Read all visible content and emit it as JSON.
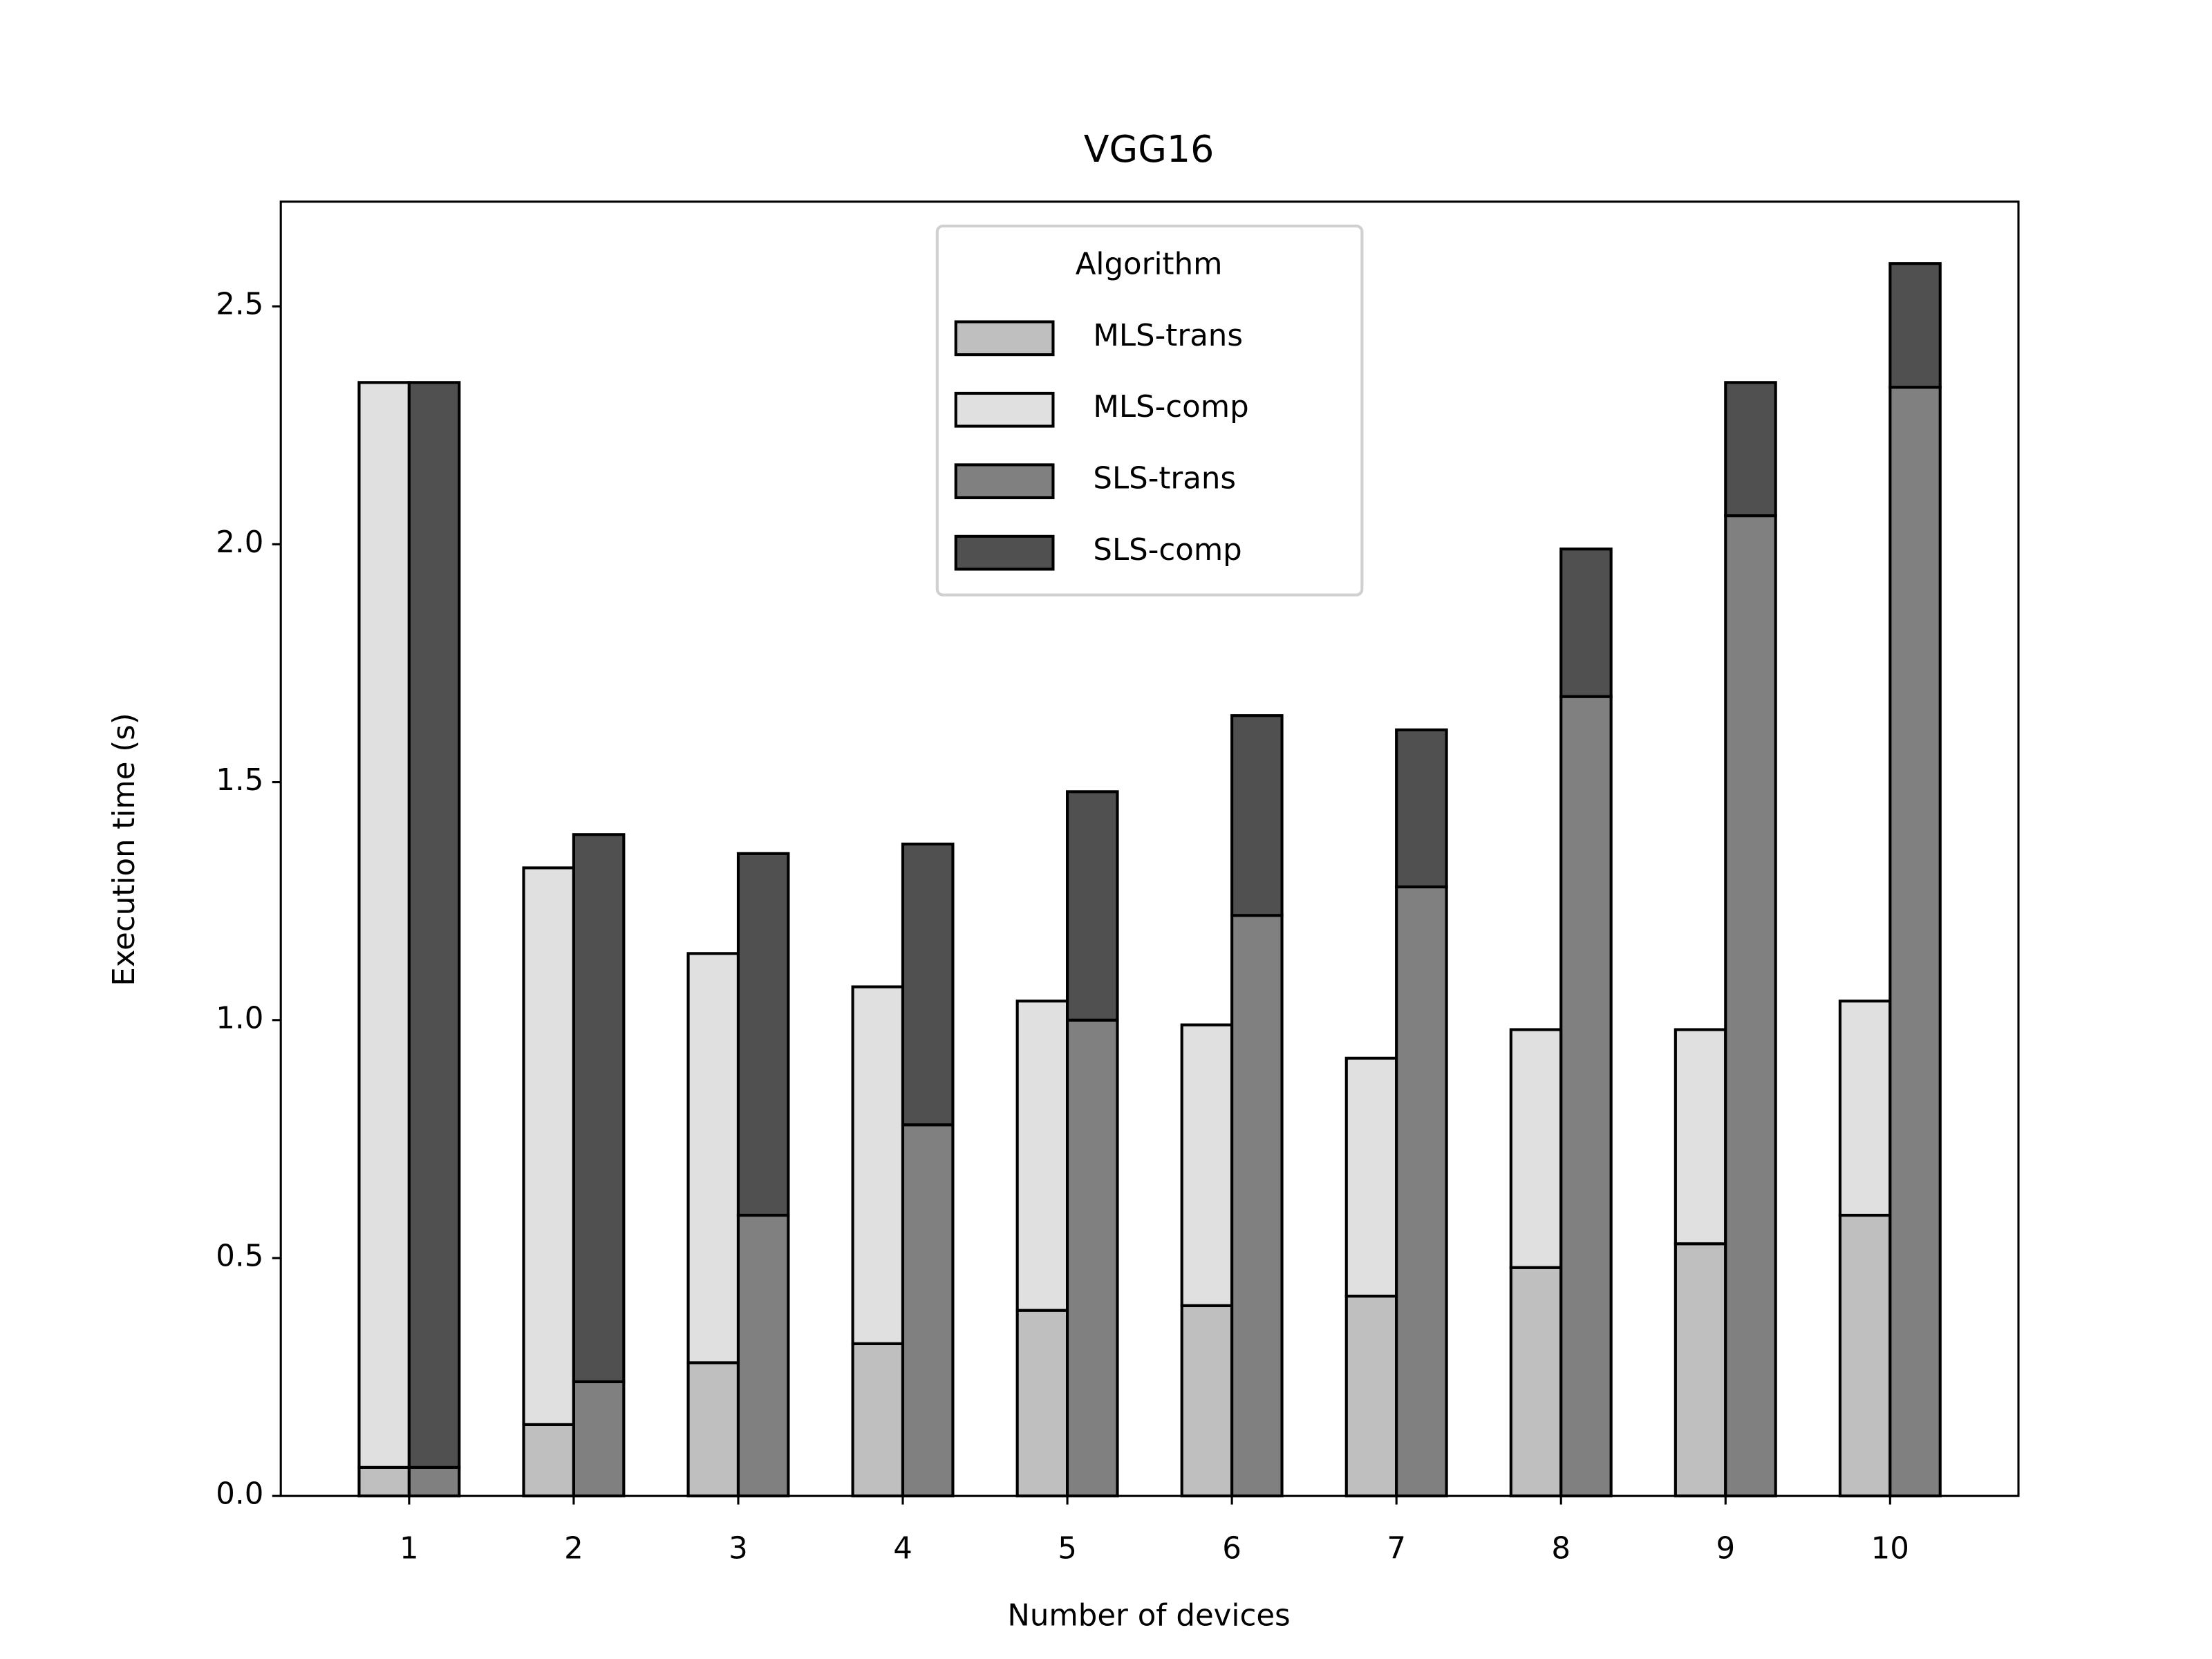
{
  "chart_data": {
    "type": "bar",
    "title": "VGG16",
    "x_label": "Number of devices",
    "y_label": "Execution time (s)",
    "categories": [
      "1",
      "2",
      "3",
      "4",
      "5",
      "6",
      "7",
      "8",
      "9",
      "10"
    ],
    "series": [
      {
        "name": "MLS-trans",
        "color": "#bfbfbf",
        "values": [
          0.06,
          0.15,
          0.28,
          0.32,
          0.39,
          0.4,
          0.42,
          0.48,
          0.53,
          0.59
        ]
      },
      {
        "name": "MLS-comp",
        "color": "#e0e0e0",
        "values": [
          2.28,
          1.17,
          0.86,
          0.75,
          0.65,
          0.59,
          0.5,
          0.5,
          0.45,
          0.45
        ]
      },
      {
        "name": "SLS-trans",
        "color": "#808080",
        "values": [
          0.06,
          0.24,
          0.59,
          0.78,
          1.0,
          1.22,
          1.28,
          1.68,
          2.06,
          2.33
        ]
      },
      {
        "name": "SLS-comp",
        "color": "#505050",
        "values": [
          2.28,
          1.15,
          0.76,
          0.59,
          0.48,
          0.42,
          0.33,
          0.31,
          0.28,
          0.26
        ]
      }
    ],
    "legend_title": "Algorithm",
    "legend_position": "upper center",
    "ylim": [
      0,
      2.72
    ],
    "yticks": [
      {
        "value": 0,
        "label": "0.0"
      },
      {
        "value": 0.5,
        "label": "0.5"
      },
      {
        "value": 1,
        "label": "1.0"
      },
      {
        "value": 1.5,
        "label": "1.5"
      },
      {
        "value": 2,
        "label": "2.0"
      },
      {
        "value": 2.5,
        "label": "2.5"
      }
    ],
    "grid": false
  }
}
